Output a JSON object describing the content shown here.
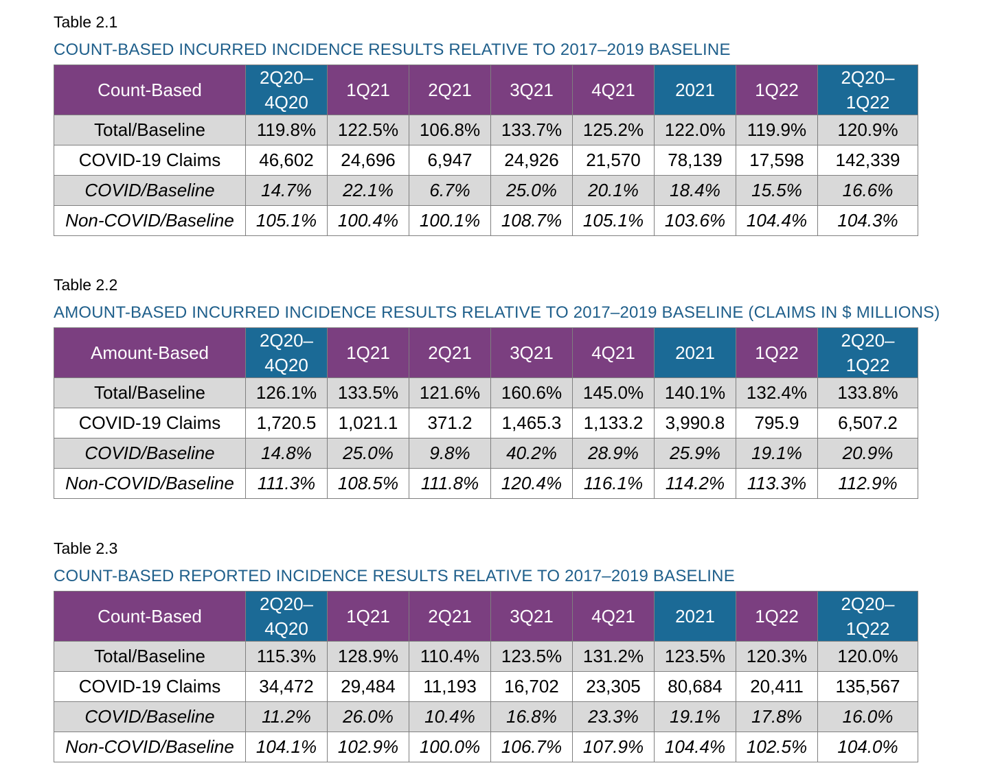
{
  "tables": [
    {
      "label": "Table 2.1",
      "caption": "COUNT-BASED INCURRED INCIDENCE RESULTS RELATIVE TO 2017–2019 BASELINE",
      "corner": "Count-Based",
      "headers": [
        [
          "2Q20–",
          "4Q20"
        ],
        [
          "1Q21"
        ],
        [
          "2Q21"
        ],
        [
          "3Q21"
        ],
        [
          "4Q21"
        ],
        [
          "2021"
        ],
        [
          "1Q22"
        ],
        [
          "2Q20–",
          "1Q22"
        ]
      ],
      "rows": [
        {
          "label": "Total/Baseline",
          "values": [
            "119.8%",
            "122.5%",
            "106.8%",
            "133.7%",
            "125.2%",
            "122.0%",
            "119.9%",
            "120.9%"
          ]
        },
        {
          "label": "COVID-19 Claims",
          "values": [
            "46,602",
            "24,696",
            "6,947",
            "24,926",
            "21,570",
            "78,139",
            "17,598",
            "142,339"
          ]
        },
        {
          "label": "COVID/Baseline",
          "values": [
            "14.7%",
            "22.1%",
            "6.7%",
            "25.0%",
            "20.1%",
            "18.4%",
            "15.5%",
            "16.6%"
          ]
        },
        {
          "label": "Non-COVID/Baseline",
          "values": [
            "105.1%",
            "100.4%",
            "100.1%",
            "108.7%",
            "105.1%",
            "103.6%",
            "104.4%",
            "104.3%"
          ]
        }
      ]
    },
    {
      "label": "Table 2.2",
      "caption": "AMOUNT-BASED INCURRED INCIDENCE RESULTS RELATIVE TO 2017–2019 BASELINE (CLAIMS IN $ MILLIONS)",
      "corner": "Amount-Based",
      "headers": [
        [
          "2Q20–",
          "4Q20"
        ],
        [
          "1Q21"
        ],
        [
          "2Q21"
        ],
        [
          "3Q21"
        ],
        [
          "4Q21"
        ],
        [
          "2021"
        ],
        [
          "1Q22"
        ],
        [
          "2Q20–",
          "1Q22"
        ]
      ],
      "rows": [
        {
          "label": "Total/Baseline",
          "values": [
            "126.1%",
            "133.5%",
            "121.6%",
            "160.6%",
            "145.0%",
            "140.1%",
            "132.4%",
            "133.8%"
          ]
        },
        {
          "label": "COVID-19 Claims",
          "values": [
            "1,720.5",
            "1,021.1",
            "371.2",
            "1,465.3",
            "1,133.2",
            "3,990.8",
            "795.9",
            "6,507.2"
          ]
        },
        {
          "label": "COVID/Baseline",
          "values": [
            "14.8%",
            "25.0%",
            "9.8%",
            "40.2%",
            "28.9%",
            "25.9%",
            "19.1%",
            "20.9%"
          ]
        },
        {
          "label": "Non-COVID/Baseline",
          "values": [
            "111.3%",
            "108.5%",
            "111.8%",
            "120.4%",
            "116.1%",
            "114.2%",
            "113.3%",
            "112.9%"
          ]
        }
      ]
    },
    {
      "label": "Table 2.3",
      "caption": "COUNT-BASED REPORTED INCIDENCE RESULTS RELATIVE TO 2017–2019 BASELINE",
      "corner": "Count-Based",
      "headers": [
        [
          "2Q20–",
          "4Q20"
        ],
        [
          "1Q21"
        ],
        [
          "2Q21"
        ],
        [
          "3Q21"
        ],
        [
          "4Q21"
        ],
        [
          "2021"
        ],
        [
          "1Q22"
        ],
        [
          "2Q20–",
          "1Q22"
        ]
      ],
      "rows": [
        {
          "label": "Total/Baseline",
          "values": [
            "115.3%",
            "128.9%",
            "110.4%",
            "123.5%",
            "131.2%",
            "123.5%",
            "120.3%",
            "120.0%"
          ]
        },
        {
          "label": "COVID-19 Claims",
          "values": [
            "34,472",
            "29,484",
            "11,193",
            "16,702",
            "23,305",
            "80,684",
            "20,411",
            "135,567"
          ]
        },
        {
          "label": "COVID/Baseline",
          "values": [
            "11.2%",
            "26.0%",
            "10.4%",
            "16.8%",
            "23.3%",
            "19.1%",
            "17.8%",
            "16.0%"
          ]
        },
        {
          "label": "Non-COVID/Baseline",
          "values": [
            "104.1%",
            "102.9%",
            "100.0%",
            "106.7%",
            "107.9%",
            "104.4%",
            "102.5%",
            "104.0%"
          ]
        }
      ]
    }
  ],
  "colors": {
    "header_purple": "#7b3f80",
    "header_blue": "#1b6a96",
    "caption_blue": "#1f5f8b",
    "row_shade": "#d9d9d9"
  }
}
